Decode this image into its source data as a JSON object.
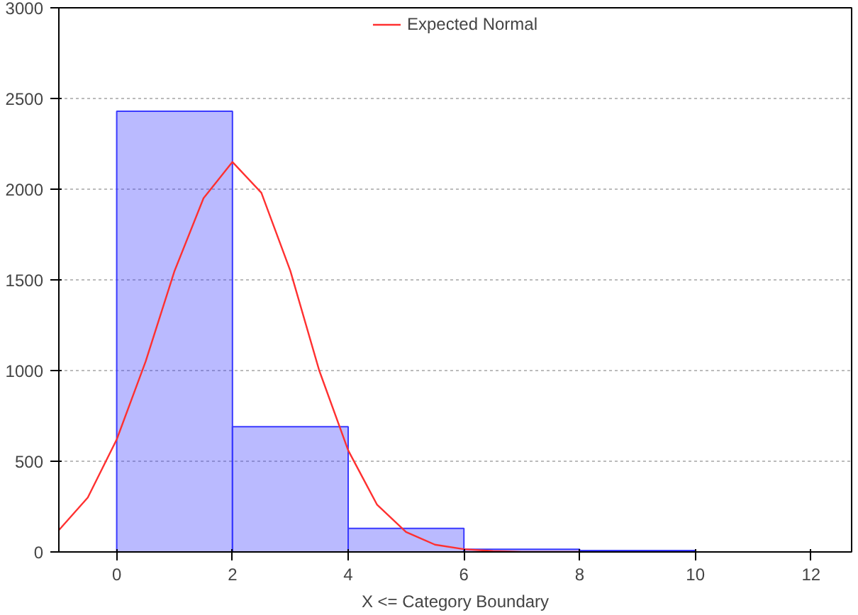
{
  "chart_data": {
    "type": "histogram",
    "xlabel": "X <= Category Boundary",
    "bins": [
      0,
      2,
      4,
      6,
      8,
      10
    ],
    "values": [
      2430,
      690,
      130,
      15,
      8
    ],
    "color": "#3a3aff",
    "series": [
      {
        "type": "line",
        "name": "Expected Normal",
        "color": "#ff3030",
        "x": [
          -1,
          -0.5,
          0,
          0.5,
          1,
          1.5,
          2,
          2.5,
          3,
          3.5,
          4,
          4.5,
          5,
          5.5,
          6,
          6.5,
          7,
          8
        ],
        "values": [
          120,
          300,
          620,
          1050,
          1550,
          1950,
          2150,
          1980,
          1550,
          1000,
          560,
          260,
          110,
          40,
          15,
          5,
          0,
          0
        ]
      }
    ],
    "xlim": [
      -1,
      12.7
    ],
    "xticks": [
      0,
      2,
      4,
      6,
      8,
      10,
      12
    ],
    "ylim": [
      0,
      3000
    ],
    "yticks": [
      0,
      500,
      1000,
      1500,
      2000,
      2500,
      3000
    ],
    "grid": "y",
    "legend": "top"
  }
}
